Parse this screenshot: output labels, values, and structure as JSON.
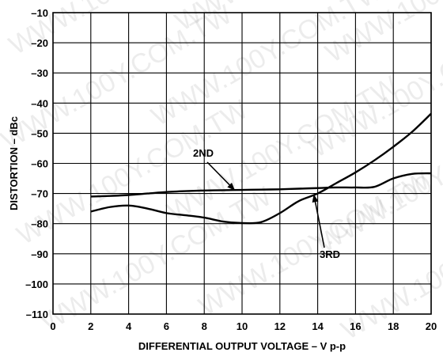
{
  "chart_data": {
    "type": "line",
    "xlabel": "DIFFERENTIAL OUTPUT VOLTAGE – V p-p",
    "ylabel": "DISTORTION – dBc",
    "xlim": [
      0,
      20
    ],
    "ylim": [
      -110,
      -10
    ],
    "x_ticks": [
      0,
      2,
      4,
      6,
      8,
      10,
      12,
      14,
      16,
      18,
      20
    ],
    "y_ticks": [
      -110,
      -100,
      -90,
      -80,
      -70,
      -60,
      -50,
      -40,
      -30,
      -20,
      -10
    ],
    "grid": true,
    "legend": "none",
    "series": [
      {
        "name": "2ND",
        "x": [
          2,
          3,
          4,
          5,
          6,
          7,
          8,
          9,
          10,
          11,
          12,
          13,
          14,
          15,
          16,
          17,
          18,
          19,
          20
        ],
        "y": [
          -71,
          -70.8,
          -70.5,
          -70,
          -69.5,
          -69.2,
          -69,
          -68.9,
          -68.8,
          -68.7,
          -68.6,
          -68.4,
          -68.2,
          -68,
          -68,
          -67.8,
          -65,
          -63.5,
          -63.3
        ]
      },
      {
        "name": "3RD",
        "x": [
          2,
          3,
          4,
          5,
          6,
          7,
          8,
          9,
          10,
          11,
          12,
          13,
          14,
          15,
          16,
          17,
          18,
          19,
          20
        ],
        "y": [
          -76,
          -74.5,
          -74,
          -75,
          -76.5,
          -77.2,
          -78,
          -79.3,
          -79.8,
          -79.5,
          -76.5,
          -72.5,
          -70,
          -66.5,
          -63,
          -59,
          -54.5,
          -49.5,
          -43.5
        ]
      }
    ],
    "annotations": [
      {
        "text": "2ND",
        "series": "2ND",
        "at_x": 9.6
      },
      {
        "text": "3RD",
        "series": "3RD",
        "at_x": 13.8
      }
    ]
  },
  "watermark": {
    "text": "WWW.100Y.COM.TW"
  }
}
